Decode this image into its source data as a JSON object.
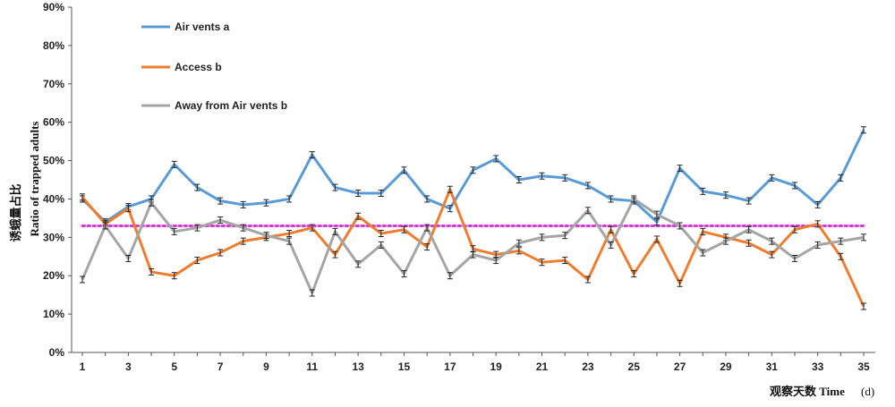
{
  "chart_data": {
    "type": "line",
    "xlabel": "观察天数 Time",
    "xunit": "(d)",
    "ylabel_cn": "诱蛾量占比",
    "ylabel_en": "Ratio of trapped adults",
    "x_ticks": [
      "1",
      "3",
      "5",
      "7",
      "9",
      "11",
      "13",
      "15",
      "17",
      "19",
      "21",
      "23",
      "25",
      "27",
      "29",
      "31",
      "33",
      "35"
    ],
    "y_ticks": [
      "0%",
      "10%",
      "20%",
      "30%",
      "40%",
      "50%",
      "60%",
      "70%",
      "80%",
      "90%"
    ],
    "ylim": [
      0,
      0.9
    ],
    "xlim": [
      1,
      35
    ],
    "reference_line": {
      "value": 0.33,
      "color": "#d63ad6",
      "style": "dotted"
    },
    "legend_position": "top-left",
    "x": [
      1,
      2,
      3,
      4,
      5,
      6,
      7,
      8,
      9,
      10,
      11,
      12,
      13,
      14,
      15,
      16,
      17,
      18,
      19,
      20,
      21,
      22,
      23,
      24,
      25,
      26,
      27,
      28,
      29,
      30,
      31,
      32,
      33,
      34,
      35
    ],
    "series": [
      {
        "name": "Air vents a",
        "color": "#5b9bd5",
        "values": [
          0.4,
          0.34,
          0.38,
          0.4,
          0.49,
          0.43,
          0.395,
          0.385,
          0.39,
          0.4,
          0.515,
          0.43,
          0.415,
          0.415,
          0.475,
          0.4,
          0.375,
          0.475,
          0.505,
          0.45,
          0.46,
          0.455,
          0.435,
          0.4,
          0.395,
          0.34,
          0.48,
          0.42,
          0.41,
          0.395,
          0.455,
          0.435,
          0.385,
          0.455,
          0.58
        ]
      },
      {
        "name": "Access b",
        "color": "#ed7d31",
        "values": [
          0.405,
          0.335,
          0.375,
          0.21,
          0.2,
          0.24,
          0.26,
          0.29,
          0.3,
          0.31,
          0.325,
          0.255,
          0.355,
          0.31,
          0.32,
          0.275,
          0.425,
          0.27,
          0.255,
          0.265,
          0.235,
          0.24,
          0.19,
          0.32,
          0.205,
          0.295,
          0.18,
          0.315,
          0.3,
          0.285,
          0.255,
          0.32,
          0.335,
          0.25,
          0.12
        ]
      },
      {
        "name": "Away from Air vents b",
        "color": "#a5a5a5",
        "values": [
          0.19,
          0.33,
          0.245,
          0.39,
          0.315,
          0.325,
          0.345,
          0.325,
          0.305,
          0.29,
          0.155,
          0.315,
          0.23,
          0.28,
          0.205,
          0.325,
          0.2,
          0.255,
          0.24,
          0.285,
          0.3,
          0.305,
          0.37,
          0.28,
          0.4,
          0.36,
          0.33,
          0.26,
          0.29,
          0.32,
          0.29,
          0.245,
          0.28,
          0.29,
          0.3
        ]
      }
    ]
  }
}
